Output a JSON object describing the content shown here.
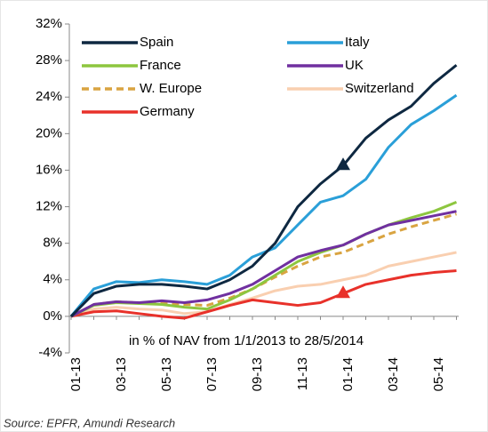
{
  "chart_data": {
    "type": "line",
    "annotation": "in % of NAV from 1/1/2013 to 28/5/2014",
    "source": "Source: EPFR, Amundi Research",
    "categories": [
      "01-13",
      null,
      "03-13",
      null,
      "05-13",
      null,
      "07-13",
      null,
      "09-13",
      null,
      "11-13",
      null,
      "01-14",
      null,
      "03-14",
      null,
      "05-14",
      null
    ],
    "ylim": [
      -4,
      32
    ],
    "yticks": [
      {
        "value": -4,
        "label": "-4%"
      },
      {
        "value": 0,
        "label": "0%"
      },
      {
        "value": 4,
        "label": "4%"
      },
      {
        "value": 8,
        "label": "8%"
      },
      {
        "value": 12,
        "label": "12%"
      },
      {
        "value": 16,
        "label": "16%"
      },
      {
        "value": 20,
        "label": "20%"
      },
      {
        "value": 24,
        "label": "24%"
      },
      {
        "value": 28,
        "label": "28%"
      },
      {
        "value": 32,
        "label": "32%"
      }
    ],
    "series": [
      {
        "name": "Spain",
        "color": "#0e2841",
        "values": [
          0,
          2.5,
          3.3,
          3.5,
          3.5,
          3.3,
          3.0,
          4.0,
          5.5,
          8.0,
          12.0,
          14.5,
          16.5,
          19.5,
          21.5,
          23.0,
          25.5,
          27.5
        ]
      },
      {
        "name": "Italy",
        "color": "#2a9fd8",
        "values": [
          0,
          3.0,
          3.8,
          3.7,
          4.0,
          3.8,
          3.5,
          4.5,
          6.5,
          7.5,
          10.0,
          12.5,
          13.2,
          15.0,
          18.5,
          21.0,
          22.5,
          24.2
        ]
      },
      {
        "name": "France",
        "color": "#8dc63f",
        "values": [
          0,
          1.2,
          1.5,
          1.4,
          1.3,
          1.0,
          0.8,
          1.8,
          3.0,
          4.5,
          6.0,
          7.0,
          7.8,
          9.0,
          10.0,
          10.8,
          11.5,
          12.5
        ]
      },
      {
        "name": "UK",
        "color": "#7030a0",
        "values": [
          0,
          1.3,
          1.6,
          1.5,
          1.7,
          1.5,
          1.8,
          2.5,
          3.5,
          5.0,
          6.5,
          7.2,
          7.8,
          9.0,
          10.0,
          10.5,
          11.0,
          11.5
        ]
      },
      {
        "name": "W. Europe",
        "color": "#d9a441",
        "dashed": true,
        "values": [
          0,
          1.3,
          1.6,
          1.5,
          1.5,
          1.3,
          1.2,
          2.0,
          3.0,
          4.3,
          5.5,
          6.5,
          7.0,
          8.0,
          9.0,
          9.8,
          10.5,
          11.2
        ]
      },
      {
        "name": "Switzerland",
        "color": "#f9cfb0",
        "values": [
          0,
          0.8,
          1.0,
          0.8,
          0.7,
          0.3,
          0.5,
          1.3,
          2.0,
          2.8,
          3.3,
          3.5,
          4.0,
          4.5,
          5.5,
          6.0,
          6.5,
          7.0
        ]
      },
      {
        "name": "Germany",
        "color": "#e8312a",
        "values": [
          0,
          0.5,
          0.6,
          0.3,
          0.0,
          -0.2,
          0.5,
          1.2,
          1.8,
          1.5,
          1.2,
          1.5,
          2.5,
          3.5,
          4.0,
          4.5,
          4.8,
          5.0
        ]
      }
    ],
    "markers": [
      {
        "series": 0,
        "index": 12
      },
      {
        "series": 6,
        "index": 12
      }
    ]
  }
}
